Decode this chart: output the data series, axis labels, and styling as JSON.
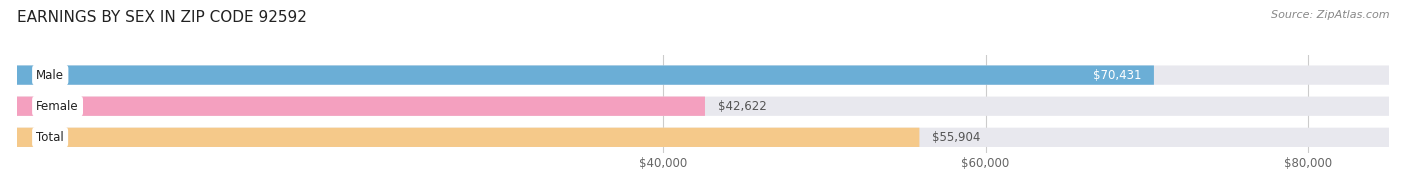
{
  "title": "EARNINGS BY SEX IN ZIP CODE 92592",
  "source": "Source: ZipAtlas.com",
  "categories": [
    "Male",
    "Female",
    "Total"
  ],
  "values": [
    70431,
    42622,
    55904
  ],
  "labels": [
    "$70,431",
    "$42,622",
    "$55,904"
  ],
  "bar_colors": [
    "#6baed6",
    "#f4a0bf",
    "#f5c98a"
  ],
  "value_label_colors": [
    "white",
    "#555555",
    "#555555"
  ],
  "xmin": 0,
  "xmax": 85000,
  "xticks": [
    40000,
    60000,
    80000
  ],
  "xtick_labels": [
    "$40,000",
    "$60,000",
    "$80,000"
  ],
  "background_color": "#ffffff",
  "bar_bg_color": "#e8e8ee",
  "bar_height": 0.62,
  "figsize": [
    14.06,
    1.96
  ],
  "dpi": 100,
  "title_fontsize": 11,
  "source_fontsize": 8,
  "label_fontsize": 8.5,
  "cat_fontsize": 8.5
}
